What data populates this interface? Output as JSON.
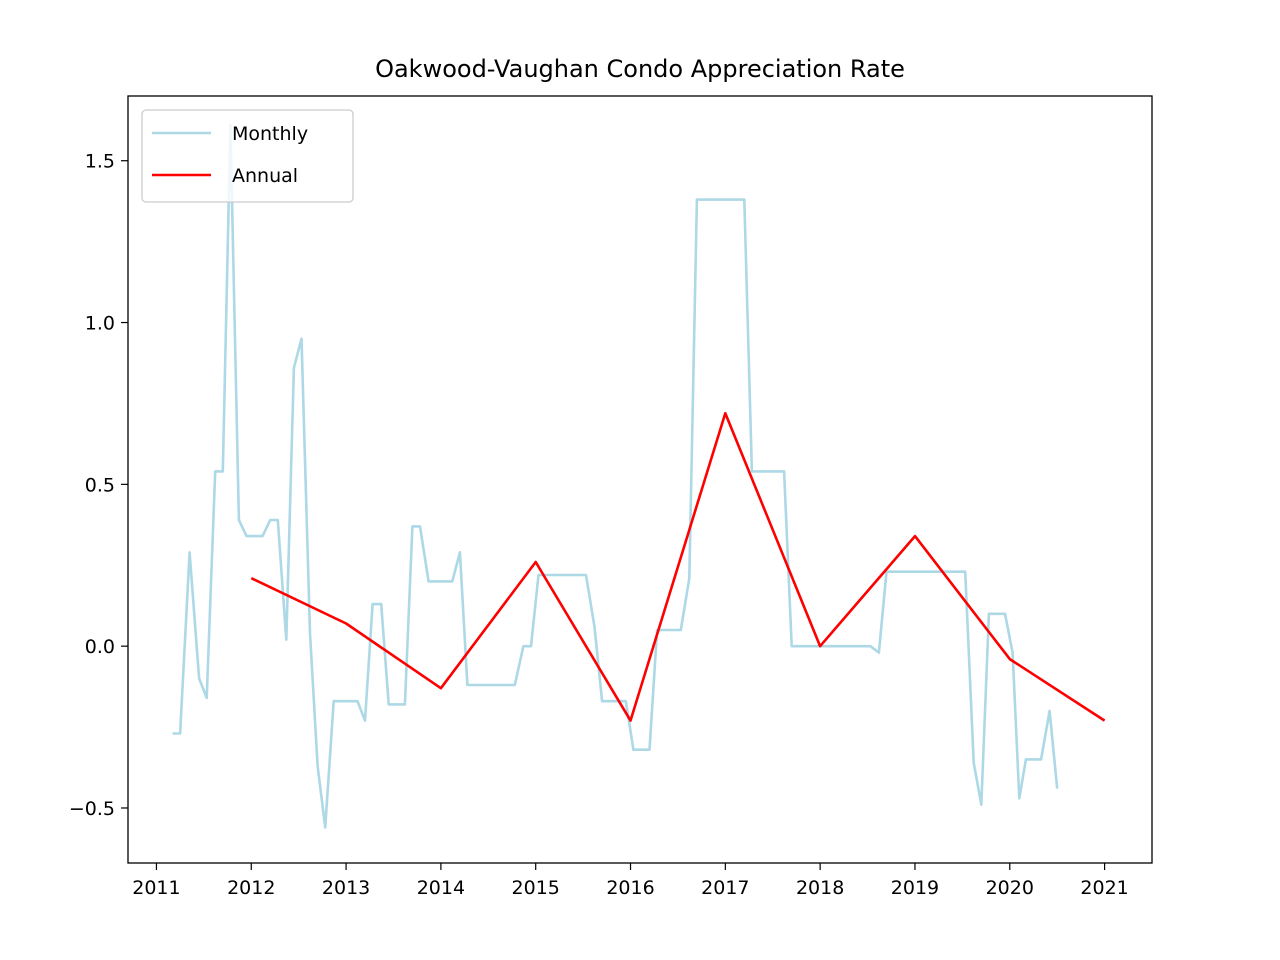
{
  "chart_data": {
    "type": "line",
    "title": "Oakwood-Vaughan Condo Appreciation Rate",
    "xlabel": "",
    "ylabel": "",
    "xlim": [
      2010.7,
      2021.5
    ],
    "ylim": [
      -0.67,
      1.7
    ],
    "x_ticks": [
      {
        "value": 2011,
        "label": "2011"
      },
      {
        "value": 2012,
        "label": "2012"
      },
      {
        "value": 2013,
        "label": "2013"
      },
      {
        "value": 2014,
        "label": "2014"
      },
      {
        "value": 2015,
        "label": "2015"
      },
      {
        "value": 2016,
        "label": "2016"
      },
      {
        "value": 2017,
        "label": "2017"
      },
      {
        "value": 2018,
        "label": "2018"
      },
      {
        "value": 2019,
        "label": "2019"
      },
      {
        "value": 2020,
        "label": "2020"
      },
      {
        "value": 2021,
        "label": "2021"
      }
    ],
    "y_ticks": [
      {
        "value": -0.5,
        "label": "−0.5"
      },
      {
        "value": 0.0,
        "label": "0.0"
      },
      {
        "value": 0.5,
        "label": "0.5"
      },
      {
        "value": 1.0,
        "label": "1.0"
      },
      {
        "value": 1.5,
        "label": "1.5"
      }
    ],
    "grid": false,
    "legend_position": "top-left",
    "series": [
      {
        "name": "Monthly",
        "color": "#add8e6",
        "points": [
          [
            2011.17,
            -0.27
          ],
          [
            2011.25,
            -0.27
          ],
          [
            2011.35,
            0.29
          ],
          [
            2011.45,
            -0.1
          ],
          [
            2011.53,
            -0.16
          ],
          [
            2011.62,
            0.54
          ],
          [
            2011.7,
            0.54
          ],
          [
            2011.78,
            1.61
          ],
          [
            2011.87,
            0.39
          ],
          [
            2011.95,
            0.34
          ],
          [
            2012.03,
            0.34
          ],
          [
            2012.12,
            0.34
          ],
          [
            2012.2,
            0.39
          ],
          [
            2012.28,
            0.39
          ],
          [
            2012.37,
            0.02
          ],
          [
            2012.45,
            0.86
          ],
          [
            2012.53,
            0.95
          ],
          [
            2012.62,
            0.04
          ],
          [
            2012.7,
            -0.37
          ],
          [
            2012.78,
            -0.56
          ],
          [
            2012.87,
            -0.17
          ],
          [
            2012.95,
            -0.17
          ],
          [
            2013.03,
            -0.17
          ],
          [
            2013.12,
            -0.17
          ],
          [
            2013.2,
            -0.23
          ],
          [
            2013.28,
            0.13
          ],
          [
            2013.37,
            0.13
          ],
          [
            2013.45,
            -0.18
          ],
          [
            2013.53,
            -0.18
          ],
          [
            2013.62,
            -0.18
          ],
          [
            2013.7,
            0.37
          ],
          [
            2013.78,
            0.37
          ],
          [
            2013.87,
            0.2
          ],
          [
            2013.95,
            0.2
          ],
          [
            2014.03,
            0.2
          ],
          [
            2014.12,
            0.2
          ],
          [
            2014.2,
            0.29
          ],
          [
            2014.28,
            -0.12
          ],
          [
            2014.37,
            -0.12
          ],
          [
            2014.45,
            -0.12
          ],
          [
            2014.53,
            -0.12
          ],
          [
            2014.62,
            -0.12
          ],
          [
            2014.7,
            -0.12
          ],
          [
            2014.78,
            -0.12
          ],
          [
            2014.87,
            0.0
          ],
          [
            2014.95,
            0.0
          ],
          [
            2015.03,
            0.22
          ],
          [
            2015.12,
            0.22
          ],
          [
            2015.2,
            0.22
          ],
          [
            2015.28,
            0.22
          ],
          [
            2015.37,
            0.22
          ],
          [
            2015.45,
            0.22
          ],
          [
            2015.53,
            0.22
          ],
          [
            2015.62,
            0.06
          ],
          [
            2015.7,
            -0.17
          ],
          [
            2015.78,
            -0.17
          ],
          [
            2015.87,
            -0.17
          ],
          [
            2015.95,
            -0.17
          ],
          [
            2016.03,
            -0.32
          ],
          [
            2016.12,
            -0.32
          ],
          [
            2016.2,
            -0.32
          ],
          [
            2016.28,
            0.05
          ],
          [
            2016.37,
            0.05
          ],
          [
            2016.45,
            0.05
          ],
          [
            2016.53,
            0.05
          ],
          [
            2016.62,
            0.21
          ],
          [
            2016.7,
            1.38
          ],
          [
            2016.78,
            1.38
          ],
          [
            2016.87,
            1.38
          ],
          [
            2016.95,
            1.38
          ],
          [
            2017.03,
            1.38
          ],
          [
            2017.12,
            1.38
          ],
          [
            2017.2,
            1.38
          ],
          [
            2017.28,
            0.54
          ],
          [
            2017.37,
            0.54
          ],
          [
            2017.45,
            0.54
          ],
          [
            2017.53,
            0.54
          ],
          [
            2017.62,
            0.54
          ],
          [
            2017.7,
            0.0
          ],
          [
            2017.78,
            0.0
          ],
          [
            2017.87,
            0.0
          ],
          [
            2017.95,
            0.0
          ],
          [
            2018.03,
            0.0
          ],
          [
            2018.12,
            0.0
          ],
          [
            2018.2,
            0.0
          ],
          [
            2018.28,
            0.0
          ],
          [
            2018.37,
            0.0
          ],
          [
            2018.45,
            0.0
          ],
          [
            2018.53,
            0.0
          ],
          [
            2018.62,
            -0.02
          ],
          [
            2018.7,
            0.23
          ],
          [
            2018.78,
            0.23
          ],
          [
            2018.87,
            0.23
          ],
          [
            2018.95,
            0.23
          ],
          [
            2019.03,
            0.23
          ],
          [
            2019.12,
            0.23
          ],
          [
            2019.2,
            0.23
          ],
          [
            2019.28,
            0.23
          ],
          [
            2019.37,
            0.23
          ],
          [
            2019.45,
            0.23
          ],
          [
            2019.53,
            0.23
          ],
          [
            2019.62,
            -0.36
          ],
          [
            2019.7,
            -0.49
          ],
          [
            2019.78,
            0.1
          ],
          [
            2019.87,
            0.1
          ],
          [
            2019.95,
            0.1
          ],
          [
            2020.03,
            -0.02
          ],
          [
            2020.1,
            -0.47
          ],
          [
            2020.17,
            -0.35
          ],
          [
            2020.25,
            -0.35
          ],
          [
            2020.33,
            -0.35
          ],
          [
            2020.42,
            -0.2
          ],
          [
            2020.5,
            -0.44
          ]
        ]
      },
      {
        "name": "Annual",
        "color": "#ff0000",
        "points": [
          [
            2012,
            0.21
          ],
          [
            2013,
            0.07
          ],
          [
            2014,
            -0.13
          ],
          [
            2015,
            0.26
          ],
          [
            2016,
            -0.23
          ],
          [
            2017,
            0.72
          ],
          [
            2018,
            0.0
          ],
          [
            2019,
            0.34
          ],
          [
            2020,
            -0.04
          ],
          [
            2021,
            -0.23
          ]
        ]
      }
    ]
  }
}
